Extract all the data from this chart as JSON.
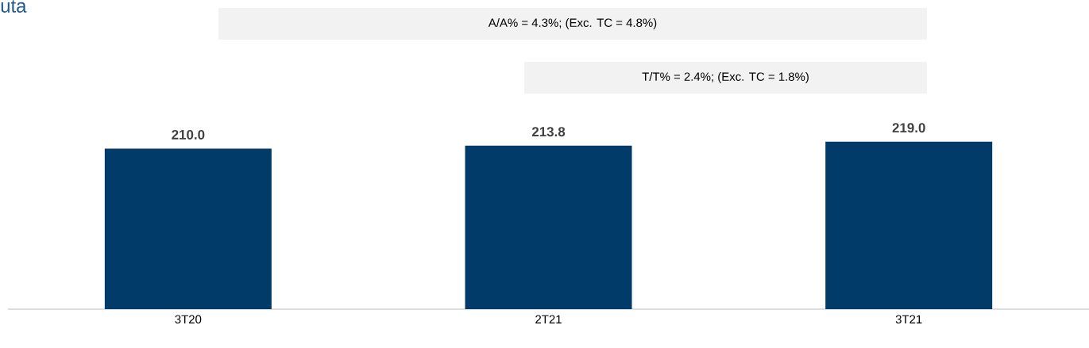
{
  "chart_data": {
    "type": "bar",
    "title": "uta",
    "categories": [
      "3T20",
      "2T21",
      "3T21"
    ],
    "values": [
      210.0,
      213.8,
      219.0
    ],
    "color": "#003b6a",
    "data_labels": true,
    "value_labels": [
      "210.0",
      "213.8",
      "219.0"
    ],
    "annotations": [
      "A/A% = 4.3%;     (Exc. TC  = 4.8%)",
      "T/T%  = 2.4%;     (Exc. TC = 1.8%)"
    ]
  }
}
